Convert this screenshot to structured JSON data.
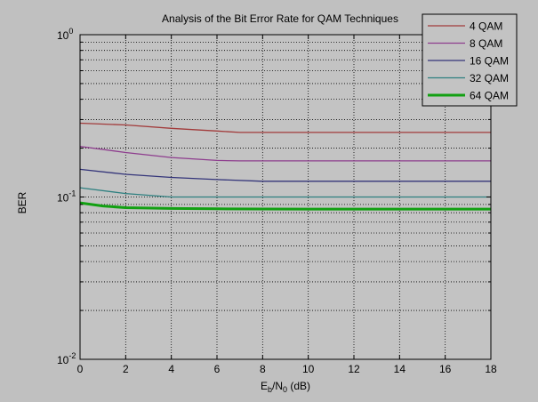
{
  "chart_data": {
    "type": "line",
    "title": "Analysis of the Bit Error Rate for QAM Techniques",
    "xlabel": {
      "main": "E",
      "sub1": "b",
      "mid": "/N",
      "sub2": "0",
      "unit": " (dB)"
    },
    "ylabel": "BER",
    "yscale": "log",
    "xlim": [
      0,
      18
    ],
    "ylim": [
      0.01,
      1
    ],
    "xticks": [
      0,
      2,
      4,
      6,
      8,
      10,
      12,
      14,
      16,
      18
    ],
    "xtick_labels": [
      "0",
      "2",
      "4",
      "6",
      "8",
      "10",
      "12",
      "14",
      "16",
      "18"
    ],
    "ytick_labels": [
      {
        "value": 1,
        "base": "10",
        "exp": "0"
      },
      {
        "value": 0.1,
        "base": "10",
        "exp": "-1"
      },
      {
        "value": 0.01,
        "base": "10",
        "exp": "-2"
      }
    ],
    "grid": true,
    "legend_position": "top-right",
    "series": [
      {
        "name": "4 QAM",
        "color": "#a23b3b",
        "width": 1.3,
        "x": [
          0,
          2,
          4,
          6,
          7,
          8,
          10,
          12,
          14,
          16,
          18
        ],
        "y": [
          0.285,
          0.278,
          0.265,
          0.255,
          0.25,
          0.25,
          0.25,
          0.25,
          0.25,
          0.25,
          0.25
        ]
      },
      {
        "name": "8 QAM",
        "color": "#8e3d8e",
        "width": 1.3,
        "x": [
          0,
          2,
          4,
          6,
          7,
          8,
          10,
          12,
          14,
          16,
          18
        ],
        "y": [
          0.205,
          0.188,
          0.175,
          0.168,
          0.167,
          0.167,
          0.167,
          0.167,
          0.167,
          0.167,
          0.167
        ]
      },
      {
        "name": "16 QAM",
        "color": "#34357a",
        "width": 1.3,
        "x": [
          0,
          2,
          4,
          6,
          8,
          10,
          12,
          14,
          16,
          18
        ],
        "y": [
          0.148,
          0.138,
          0.132,
          0.128,
          0.125,
          0.125,
          0.125,
          0.125,
          0.125,
          0.125
        ]
      },
      {
        "name": "32 QAM",
        "color": "#2e8080",
        "width": 1.3,
        "x": [
          0,
          2,
          4,
          6,
          8,
          10,
          12,
          14,
          16,
          18
        ],
        "y": [
          0.114,
          0.105,
          0.1,
          0.1,
          0.1,
          0.1,
          0.1,
          0.1,
          0.1,
          0.1
        ]
      },
      {
        "name": "64 QAM",
        "color": "#12a012",
        "width": 3,
        "x": [
          0,
          1,
          2,
          4,
          6,
          8,
          10,
          12,
          14,
          16,
          18
        ],
        "y": [
          0.092,
          0.088,
          0.086,
          0.085,
          0.0845,
          0.0843,
          0.0842,
          0.0842,
          0.0842,
          0.0842,
          0.0842
        ]
      }
    ]
  }
}
